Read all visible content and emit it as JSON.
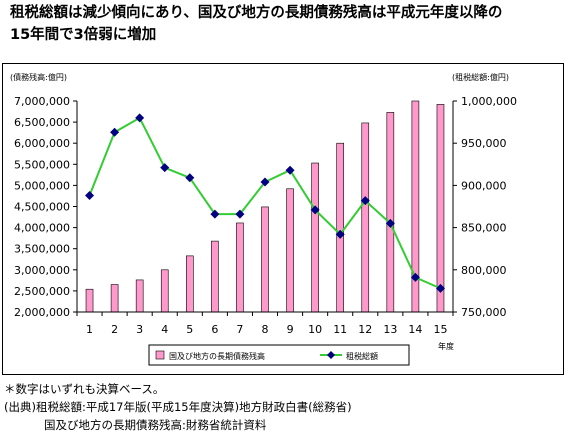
{
  "title_lines": [
    "租税総額は減少傾向にあり、国及び地方の長期債務残高は平成元年度以降の",
    "15年間で3倍弱に増加"
  ],
  "notes": {
    "line1": "＊数字はいずれも決算ベース。",
    "line2": "(出典)租税総額:平成17年版(平成15年度決算)地方財政白書(総務省)",
    "line3": "国及び地方の長期債務残高:財務省統計資料"
  },
  "chart_data": {
    "type": "bar",
    "categories": [
      "1",
      "2",
      "3",
      "4",
      "5",
      "6",
      "7",
      "8",
      "9",
      "10",
      "11",
      "12",
      "13",
      "14",
      "15"
    ],
    "x_unit_label": "年度",
    "left_axis": {
      "label": "(債務残高:億円)",
      "ylim": [
        2000000,
        7000000
      ],
      "ticks": [
        "2,000,000",
        "2,500,000",
        "3,000,000",
        "3,500,000",
        "4,000,000",
        "4,500,000",
        "5,000,000",
        "5,500,000",
        "6,000,000",
        "6,500,000",
        "7,000,000"
      ]
    },
    "right_axis": {
      "label": "(租税総額:億円)",
      "ylim": [
        750000,
        1000000
      ],
      "ticks": [
        "750,000",
        "800,000",
        "850,000",
        "900,000",
        "950,000",
        "1,000,000"
      ]
    },
    "series": [
      {
        "name": "国及び地方の長期債務残高",
        "kind": "bar",
        "axis": "left",
        "color": "#ff99cc",
        "values": [
          2540000,
          2650000,
          2760000,
          3000000,
          3330000,
          3680000,
          4110000,
          4490000,
          4920000,
          5530000,
          6000000,
          6480000,
          6730000,
          7000000,
          6920000
        ]
      },
      {
        "name": "租税総額",
        "kind": "line",
        "axis": "right",
        "color": "#33cc33",
        "marker_color": "#000080",
        "values": [
          888000,
          963000,
          980000,
          921000,
          909000,
          866000,
          866000,
          904000,
          918000,
          871000,
          842000,
          882000,
          855000,
          791000,
          778000
        ]
      }
    ],
    "grid": false,
    "legend": "bottom"
  }
}
